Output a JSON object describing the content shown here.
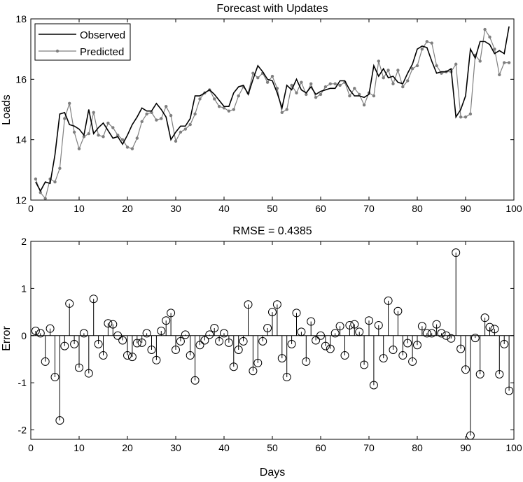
{
  "chart_data": [
    {
      "type": "line",
      "title": "Forecast with Updates",
      "xlabel": "",
      "ylabel": "Loads",
      "xlim": [
        0,
        100
      ],
      "ylim": [
        12,
        18
      ],
      "xticks": [
        0,
        10,
        20,
        30,
        40,
        50,
        60,
        70,
        80,
        90,
        100
      ],
      "yticks": [
        12,
        14,
        16,
        18
      ],
      "legend": {
        "placement": "top-left",
        "entries": [
          "Observed",
          "Predicted"
        ]
      },
      "grid": false,
      "x": [
        1,
        2,
        3,
        4,
        5,
        6,
        7,
        8,
        9,
        10,
        11,
        12,
        13,
        14,
        15,
        16,
        17,
        18,
        19,
        20,
        21,
        22,
        23,
        24,
        25,
        26,
        27,
        28,
        29,
        30,
        31,
        32,
        33,
        34,
        35,
        36,
        37,
        38,
        39,
        40,
        41,
        42,
        43,
        44,
        45,
        46,
        47,
        48,
        49,
        50,
        51,
        52,
        53,
        54,
        55,
        56,
        57,
        58,
        59,
        60,
        61,
        62,
        63,
        64,
        65,
        66,
        67,
        68,
        69,
        70,
        71,
        72,
        73,
        74,
        75,
        76,
        77,
        78,
        79,
        80,
        81,
        82,
        83,
        84,
        85,
        86,
        87,
        88,
        89,
        90,
        91,
        92,
        93,
        94,
        95,
        96,
        97,
        98,
        99
      ],
      "series": [
        {
          "name": "Observed",
          "color": "#000000",
          "values": [
            12.6,
            12.3,
            12.6,
            12.55,
            13.5,
            14.85,
            14.9,
            14.5,
            14.45,
            14.35,
            14.15,
            15.0,
            14.2,
            14.4,
            14.55,
            14.3,
            14.05,
            14.1,
            13.85,
            14.15,
            14.5,
            14.75,
            15.05,
            14.95,
            14.95,
            15.2,
            15.0,
            14.75,
            14.0,
            14.25,
            14.45,
            14.45,
            14.7,
            15.45,
            15.45,
            15.55,
            15.65,
            15.5,
            15.3,
            15.1,
            15.1,
            15.55,
            15.75,
            15.8,
            15.5,
            16.0,
            16.45,
            16.25,
            16.0,
            15.95,
            15.55,
            15.05,
            15.8,
            15.65,
            16.0,
            15.65,
            15.55,
            15.75,
            15.5,
            15.6,
            15.65,
            15.7,
            15.7,
            15.95,
            15.95,
            15.65,
            15.45,
            15.45,
            15.4,
            15.5,
            16.45,
            16.1,
            16.35,
            16.05,
            16.1,
            15.9,
            15.85,
            16.2,
            16.5,
            17.0,
            17.1,
            17.05,
            16.6,
            16.2,
            16.25,
            16.25,
            16.35,
            14.75,
            15.0,
            15.45,
            17.0,
            16.7,
            17.25,
            17.25,
            17.15,
            16.85,
            16.95,
            16.85,
            17.75
          ]
        },
        {
          "name": "Predicted",
          "color": "#7f7f7f",
          "values": [
            12.7,
            12.25,
            12.05,
            12.7,
            12.6,
            13.05,
            14.7,
            15.2,
            14.25,
            13.7,
            14.1,
            14.2,
            14.9,
            14.15,
            14.1,
            14.55,
            14.4,
            14.15,
            14.0,
            13.75,
            13.7,
            14.05,
            14.6,
            14.85,
            14.9,
            14.65,
            14.7,
            15.1,
            14.8,
            13.95,
            14.25,
            14.35,
            14.5,
            14.85,
            15.35,
            15.55,
            15.65,
            15.35,
            15.1,
            15.05,
            14.95,
            15.0,
            15.45,
            15.75,
            15.55,
            16.2,
            16.05,
            16.2,
            15.9,
            16.1,
            15.7,
            14.9,
            15.0,
            15.8,
            15.55,
            15.9,
            15.5,
            15.85,
            15.4,
            15.5,
            15.75,
            15.85,
            15.85,
            15.8,
            15.9,
            15.45,
            15.7,
            15.5,
            15.15,
            15.55,
            15.45,
            16.6,
            16.05,
            16.3,
            15.85,
            16.3,
            15.75,
            15.95,
            16.35,
            16.45,
            17.0,
            17.25,
            17.2,
            16.45,
            16.2,
            16.25,
            16.25,
            16.5,
            14.75,
            14.75,
            14.85,
            16.8,
            16.6,
            17.65,
            17.4,
            17.0,
            16.15,
            16.55,
            16.55
          ]
        }
      ]
    },
    {
      "type": "stem",
      "title": "RMSE = 0.4385",
      "xlabel": "Days",
      "ylabel": "Error",
      "xlim": [
        0,
        100
      ],
      "ylim": [
        -2.2,
        2
      ],
      "xticks": [
        0,
        10,
        20,
        30,
        40,
        50,
        60,
        70,
        80,
        90,
        100
      ],
      "yticks": [
        -2,
        -1,
        0,
        1,
        2
      ],
      "grid": false,
      "x": [
        1,
        2,
        3,
        4,
        5,
        6,
        7,
        8,
        9,
        10,
        11,
        12,
        13,
        14,
        15,
        16,
        17,
        18,
        19,
        20,
        21,
        22,
        23,
        24,
        25,
        26,
        27,
        28,
        29,
        30,
        31,
        32,
        33,
        34,
        35,
        36,
        37,
        38,
        39,
        40,
        41,
        42,
        43,
        44,
        45,
        46,
        47,
        48,
        49,
        50,
        51,
        52,
        53,
        54,
        55,
        56,
        57,
        58,
        59,
        60,
        61,
        62,
        63,
        64,
        65,
        66,
        67,
        68,
        69,
        70,
        71,
        72,
        73,
        74,
        75,
        76,
        77,
        78,
        79,
        80,
        81,
        82,
        83,
        84,
        85,
        86,
        87,
        88,
        89,
        90,
        91,
        92,
        93,
        94,
        95,
        96,
        97,
        98,
        99
      ],
      "values": [
        0.1,
        0.05,
        -0.55,
        0.15,
        -0.88,
        -1.8,
        -0.22,
        0.68,
        -0.18,
        -0.68,
        0.05,
        -0.8,
        0.78,
        -0.18,
        -0.42,
        0.26,
        0.24,
        0.0,
        -0.1,
        -0.42,
        -0.45,
        -0.16,
        -0.15,
        0.05,
        -0.3,
        -0.52,
        0.1,
        0.32,
        0.48,
        -0.3,
        -0.12,
        0.02,
        -0.42,
        -0.95,
        -0.2,
        -0.1,
        0.02,
        0.16,
        -0.12,
        0.05,
        -0.15,
        -0.66,
        -0.3,
        -0.12,
        0.66,
        -0.75,
        -0.58,
        -0.12,
        0.16,
        0.5,
        0.66,
        -0.48,
        -0.88,
        -0.18,
        0.48,
        0.08,
        -0.55,
        0.3,
        -0.1,
        0.0,
        -0.22,
        -0.28,
        0.05,
        0.2,
        -0.42,
        0.22,
        0.24,
        0.08,
        -0.62,
        0.32,
        -1.05,
        0.22,
        -0.48,
        0.74,
        -0.3,
        0.52,
        -0.42,
        -0.16,
        -0.55,
        -0.2,
        0.2,
        0.05,
        0.05,
        0.24,
        0.05,
        0.0,
        -0.06,
        1.76,
        -0.28,
        -0.72,
        -2.12,
        -0.05,
        -0.82,
        0.38,
        0.18,
        0.14,
        -0.82,
        -0.18,
        -1.17
      ]
    }
  ]
}
